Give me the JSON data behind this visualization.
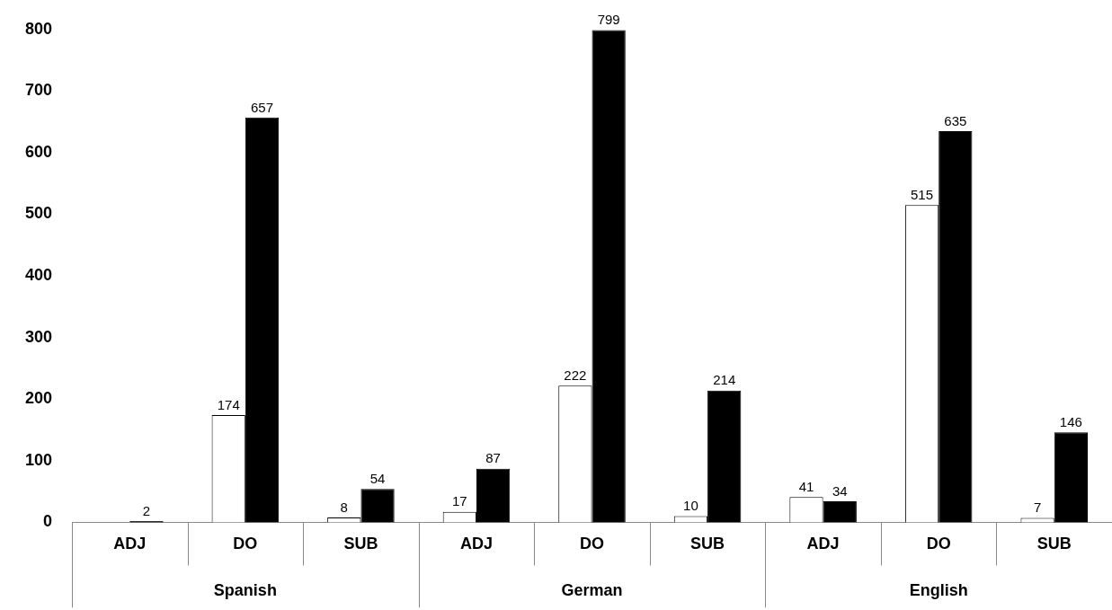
{
  "chart_data": {
    "type": "bar",
    "categories": [
      "ADJ",
      "DO",
      "SUB",
      "ADJ",
      "DO",
      "SUB",
      "ADJ",
      "DO",
      "SUB"
    ],
    "series": [
      {
        "color": "#ffffff",
        "values": [
          null,
          174,
          8,
          17,
          222,
          10,
          41,
          515,
          7
        ],
        "value_labels": [
          null,
          "174",
          "8",
          "17",
          "222",
          "10",
          "41",
          "515",
          "7"
        ]
      },
      {
        "color": "#000000",
        "values": [
          2,
          657,
          54,
          87,
          799,
          214,
          34,
          635,
          146
        ],
        "value_labels": [
          "2",
          "657",
          "54",
          "87",
          "799",
          "214",
          "34",
          "635",
          "146"
        ]
      }
    ],
    "annotations": [
      "Spanish",
      "German",
      "English"
    ],
    "ylim": [
      0,
      800
    ],
    "yticks": [
      0,
      100,
      200,
      300,
      400,
      500,
      600,
      700,
      800
    ],
    "grid": false,
    "legend": false
  }
}
